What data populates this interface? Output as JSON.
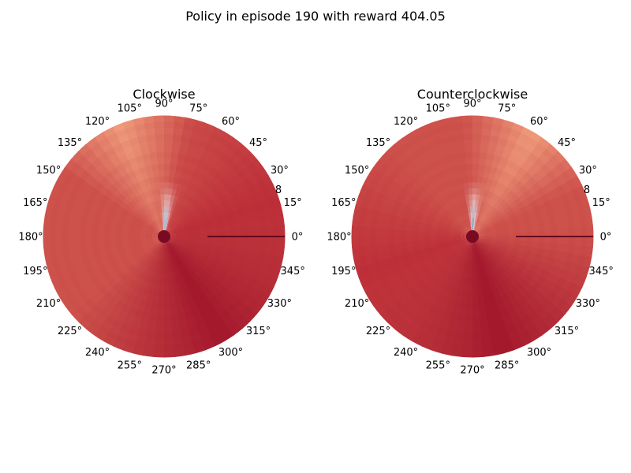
{
  "figure": {
    "suptitle": "Policy in episode 190 with reward 404.05"
  },
  "chart_data": [
    {
      "type": "heatmap",
      "projection": "polar",
      "title": "Clockwise",
      "angle_tick_labels": [
        "0°",
        "15°",
        "30°",
        "45°",
        "60°",
        "75°",
        "90°",
        "105°",
        "120°",
        "135°",
        "150°",
        "165°",
        "180°",
        "195°",
        "210°",
        "225°",
        "240°",
        "255°",
        "270°",
        "285°",
        "300°",
        "315°",
        "330°",
        "345°"
      ],
      "radial_tick_labels": [
        "8"
      ],
      "rmax": 8,
      "colormap": "RdBu_r",
      "colors": {
        "dark": "#67001f",
        "deep": "#9c0d26",
        "red": "#b2182b",
        "salmon": "#e58267",
        "peach": "#f4a582",
        "white": "#f7f7f7",
        "blue": "#2166ac"
      },
      "description_values": {
        "blue_wedge_center_deg": 85,
        "light_wedge_center_deg": 112,
        "dark_band_center_deg": 300
      }
    },
    {
      "type": "heatmap",
      "projection": "polar",
      "title": "Counterclockwise",
      "angle_tick_labels": [
        "0°",
        "15°",
        "30°",
        "45°",
        "60°",
        "75°",
        "90°",
        "105°",
        "120°",
        "135°",
        "150°",
        "165°",
        "180°",
        "195°",
        "210°",
        "225°",
        "240°",
        "255°",
        "270°",
        "285°",
        "300°",
        "315°",
        "330°",
        "345°"
      ],
      "radial_tick_labels": [
        "8"
      ],
      "rmax": 8,
      "colormap": "RdBu_r",
      "colors": {
        "dark": "#67001f",
        "deep": "#9c0d26",
        "red": "#b2182b",
        "salmon": "#e58267",
        "peach": "#f4a582",
        "white": "#f7f7f7",
        "blue": "#2166ac"
      },
      "description_values": {
        "blue_wedge_center_deg": 88,
        "light_wedge_center_deg": 60,
        "dark_band_center_deg": 285
      }
    }
  ]
}
